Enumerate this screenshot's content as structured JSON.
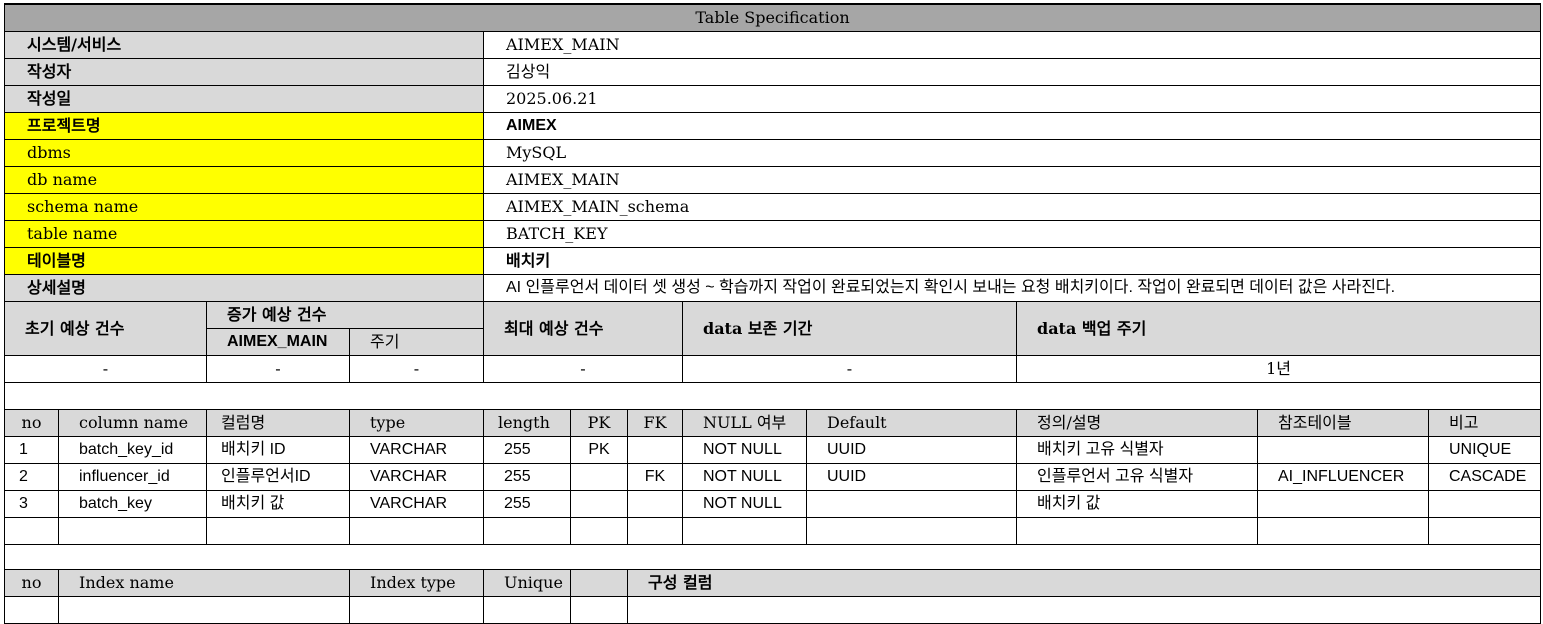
{
  "title": "Table Specification",
  "info": [
    {
      "label": "시스템/서비스",
      "value": "AIMEX_MAIN",
      "highlight": false,
      "sans": false
    },
    {
      "label": "작성자",
      "value": "김상익",
      "highlight": false,
      "sans": false
    },
    {
      "label": "작성일",
      "value": "2025.06.21",
      "highlight": false,
      "sans": false
    },
    {
      "label": "프로젝트명",
      "value": "AIMEX",
      "highlight": true,
      "sans": true
    },
    {
      "label": "dbms",
      "value": "MySQL",
      "highlight": true,
      "sans": false
    },
    {
      "label": "db name",
      "value": "AIMEX_MAIN",
      "highlight": true,
      "sans": false
    },
    {
      "label": "schema name",
      "value": "AIMEX_MAIN_schema",
      "highlight": true,
      "sans": false
    },
    {
      "label": "table name",
      "value": "BATCH_KEY",
      "highlight": true,
      "sans": false
    },
    {
      "label": "테이블명",
      "value": "배치키",
      "highlight": true,
      "sans": false
    },
    {
      "label": "상세설명",
      "value": "AI 인플루언서 데이터 셋 생성 ~ 학습까지 작업이 완료되었는지 확인시 보내는 요청 배치키이다. 작업이 완료되면 데이터 값은 사라진다.",
      "highlight": false,
      "sans": true
    }
  ],
  "volume": {
    "initial_label": "초기 예상 건수",
    "increase_label": "증가 예상 건수",
    "increase_sub1": "AIMEX_MAIN",
    "increase_sub2": "주기",
    "max_label": "최대 예상 건수",
    "retention_label": "data 보존 기간",
    "backup_label": "data 백업 주기",
    "values": {
      "initial": "-",
      "increase": "-",
      "cycle": "-",
      "max": "-",
      "retention": "-",
      "backup": "1년"
    }
  },
  "columns": {
    "headers": {
      "no": "no",
      "column_name": "column name",
      "kor_name": "컬럼명",
      "type": "type",
      "length": "length",
      "pk": "PK",
      "fk": "FK",
      "null": "NULL 여부",
      "default": "Default",
      "desc": "정의/설명",
      "ref": "참조테이블",
      "note": "비고"
    },
    "rows": [
      {
        "no": "1",
        "column_name": "batch_key_id",
        "kor_name": "배치키 ID",
        "type": "VARCHAR",
        "length": "255",
        "pk": "PK",
        "fk": "",
        "null": "NOT NULL",
        "default": "UUID",
        "desc": "배치키 고유 식별자",
        "ref": "",
        "note": "UNIQUE"
      },
      {
        "no": "2",
        "column_name": "influencer_id",
        "kor_name": "인플루언서ID",
        "type": "VARCHAR",
        "length": "255",
        "pk": "",
        "fk": "FK",
        "null": "NOT NULL",
        "default": "UUID",
        "desc": "인플루언서  고유 식별자",
        "ref": "AI_INFLUENCER",
        "note": "CASCADE"
      },
      {
        "no": "3",
        "column_name": "batch_key",
        "kor_name": "배치키 값",
        "type": "VARCHAR",
        "length": "255",
        "pk": "",
        "fk": "",
        "null": "NOT NULL",
        "default": "",
        "desc": "배치키 값",
        "ref": "",
        "note": ""
      }
    ]
  },
  "index": {
    "headers": {
      "no": "no",
      "name": "Index name",
      "type": "Index type",
      "unique": "Unique",
      "cols": "구성 컬럼"
    }
  }
}
